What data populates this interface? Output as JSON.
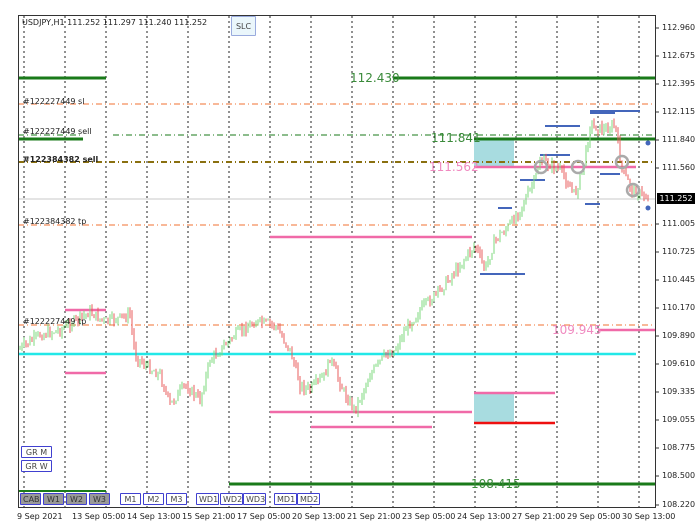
{
  "header": {
    "symbol_info": "USDJPY,H1  111.252 111.297 111.240 111.252",
    "slc_button": "SLC"
  },
  "price_axis": {
    "ticks": [
      "112.960",
      "112.675",
      "112.395",
      "112.115",
      "111.840",
      "111.560",
      "111.005",
      "110.725",
      "110.445",
      "110.170",
      "109.890",
      "109.610",
      "109.335",
      "109.055",
      "108.775",
      "108.500",
      "108.220"
    ],
    "current_price": "111.252"
  },
  "time_axis": {
    "ticks": [
      "9 Sep 2021",
      "13 Sep 05:00",
      "14 Sep 13:00",
      "15 Sep 21:00",
      "17 Sep 05:00",
      "20 Sep 13:00",
      "21 Sep 21:00",
      "23 Sep 05:00",
      "24 Sep 13:00",
      "27 Sep 21:00",
      "29 Sep 05:00",
      "30 Sep 13:00"
    ]
  },
  "order_labels": {
    "sl1": "#122227449 sl",
    "sell1": "#122227449 sell",
    "sell2": "#122384382 sell",
    "tp2": "#122384382 tp",
    "tp1": "#122227449 tp"
  },
  "levels": {
    "l1": "112.430",
    "l2": "111.841",
    "l3": "111.562",
    "l4": "109.945",
    "l5": "108.415"
  },
  "side_buttons": [
    "GR M",
    "GR W"
  ],
  "bottom_buttons": [
    {
      "label": "CAB",
      "active": true
    },
    {
      "label": "W1",
      "active": true
    },
    {
      "label": "W2",
      "active": true
    },
    {
      "label": "W3",
      "active": true
    },
    {
      "label": "M1",
      "active": false
    },
    {
      "label": "M2",
      "active": false
    },
    {
      "label": "M3",
      "active": false
    },
    {
      "label": "WD1",
      "active": false
    },
    {
      "label": "WD2",
      "active": false
    },
    {
      "label": "WD3",
      "active": false
    },
    {
      "label": "MD1",
      "active": false
    },
    {
      "label": "MD2",
      "active": false
    }
  ],
  "colors": {
    "bull": "#7ed87e",
    "bear": "#e85c5c",
    "green_level": "#1a7a1a",
    "pink_level": "#f06aa8",
    "cyan_level": "#22e8e8",
    "orange_dash": "#f07030",
    "brown_dash": "#8a7010",
    "zone": "#a8dce0",
    "red_level": "#ee1010",
    "current_bg": "#000000"
  }
}
